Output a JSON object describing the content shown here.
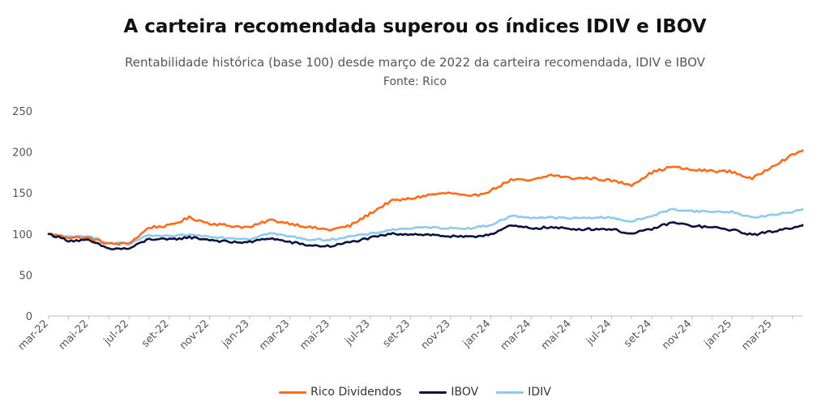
{
  "title": "A carteira recomendada superou os índices IDIV e IBOV",
  "subtitle": "Rentabilidade histórica (base 100) desde março de 2022 da carteira recomendada, IDIV e IBOV",
  "source": "Fonte: Rico",
  "colors": {
    "rico": "#ff6b1a",
    "ibov": "#0b1240",
    "idiv": "#8ec9ef",
    "axis": "#bbbbbb"
  },
  "chart_data": {
    "type": "line",
    "title": "A carteira recomendada superou os índices IDIV e IBOV",
    "xlabel": "",
    "ylabel": "",
    "ylim": [
      0,
      250
    ],
    "yticks": [
      "0",
      "50",
      "100",
      "150",
      "200",
      "250"
    ],
    "xtick_labels": [
      "mar-22",
      "mai-22",
      "jul-22",
      "set-22",
      "nov-22",
      "jan-23",
      "mar-23",
      "mai-23",
      "jul-23",
      "set-23",
      "nov-23",
      "jan-24",
      "mar-24",
      "mai-24",
      "jul-24",
      "set-24",
      "nov-24",
      "jan-25",
      "mar-25"
    ],
    "x_months": [
      0,
      1,
      2,
      3,
      4,
      5,
      6,
      7,
      8,
      9,
      10,
      11,
      12,
      13,
      14,
      15,
      16,
      17,
      18,
      19,
      20,
      21,
      22,
      23,
      24,
      25,
      26,
      27,
      28,
      29,
      30,
      31,
      32,
      33,
      34,
      35,
      36,
      37,
      38
    ],
    "x_range_months": [
      0,
      37.5
    ],
    "grid": false,
    "legend_position": "bottom",
    "series": [
      {
        "name": "Rico Dividendos",
        "values": [
          100,
          96,
          95,
          88,
          88,
          108,
          110,
          120,
          113,
          110,
          108,
          117,
          113,
          108,
          105,
          110,
          125,
          140,
          143,
          148,
          150,
          145,
          153,
          166,
          165,
          172,
          168,
          168,
          165,
          160,
          175,
          182,
          178,
          177,
          176,
          167,
          183,
          196,
          208
        ]
      },
      {
        "name": "IBOV",
        "values": [
          100,
          92,
          92,
          82,
          82,
          94,
          93,
          96,
          93,
          90,
          90,
          95,
          90,
          86,
          85,
          90,
          95,
          100,
          100,
          99,
          97,
          96,
          100,
          110,
          107,
          108,
          106,
          106,
          106,
          100,
          106,
          114,
          110,
          108,
          105,
          99,
          103,
          108,
          114
        ]
      },
      {
        "name": "IDIV",
        "values": [
          100,
          96,
          98,
          88,
          89,
          98,
          97,
          99,
          97,
          95,
          94,
          101,
          97,
          93,
          93,
          97,
          100,
          105,
          107,
          108,
          107,
          107,
          111,
          122,
          120,
          120,
          119,
          120,
          120,
          115,
          122,
          130,
          128,
          127,
          127,
          120,
          123,
          127,
          134
        ]
      }
    ]
  }
}
